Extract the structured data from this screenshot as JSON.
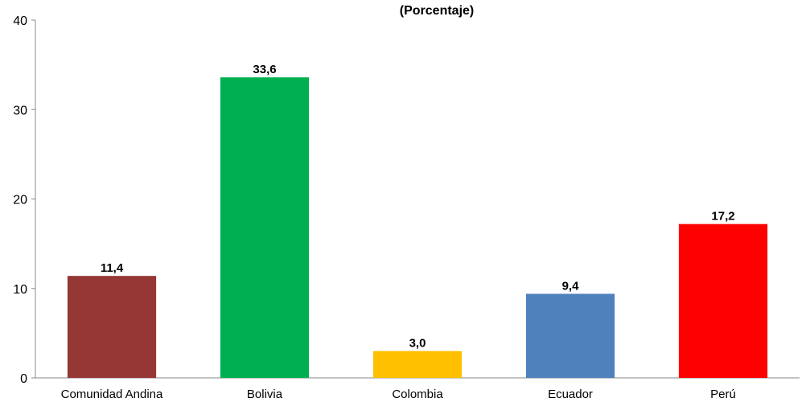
{
  "chart_data": {
    "type": "bar",
    "title": "(Porcentaje)",
    "categories": [
      "Comunidad Andina",
      "Bolivia",
      "Colombia",
      "Ecuador",
      "Perú"
    ],
    "values": [
      11.4,
      33.6,
      3.0,
      9.4,
      17.2
    ],
    "value_labels": [
      "11,4",
      "33,6",
      "3,0",
      "9,4",
      "17,2"
    ],
    "colors": [
      "#953735",
      "#00B050",
      "#FFC000",
      "#4F81BD",
      "#FF0000"
    ],
    "ylim": [
      0,
      40
    ],
    "yticks": [
      0,
      10,
      20,
      30,
      40
    ],
    "xlabel": "",
    "ylabel": "",
    "grid": false,
    "legend": "none"
  }
}
